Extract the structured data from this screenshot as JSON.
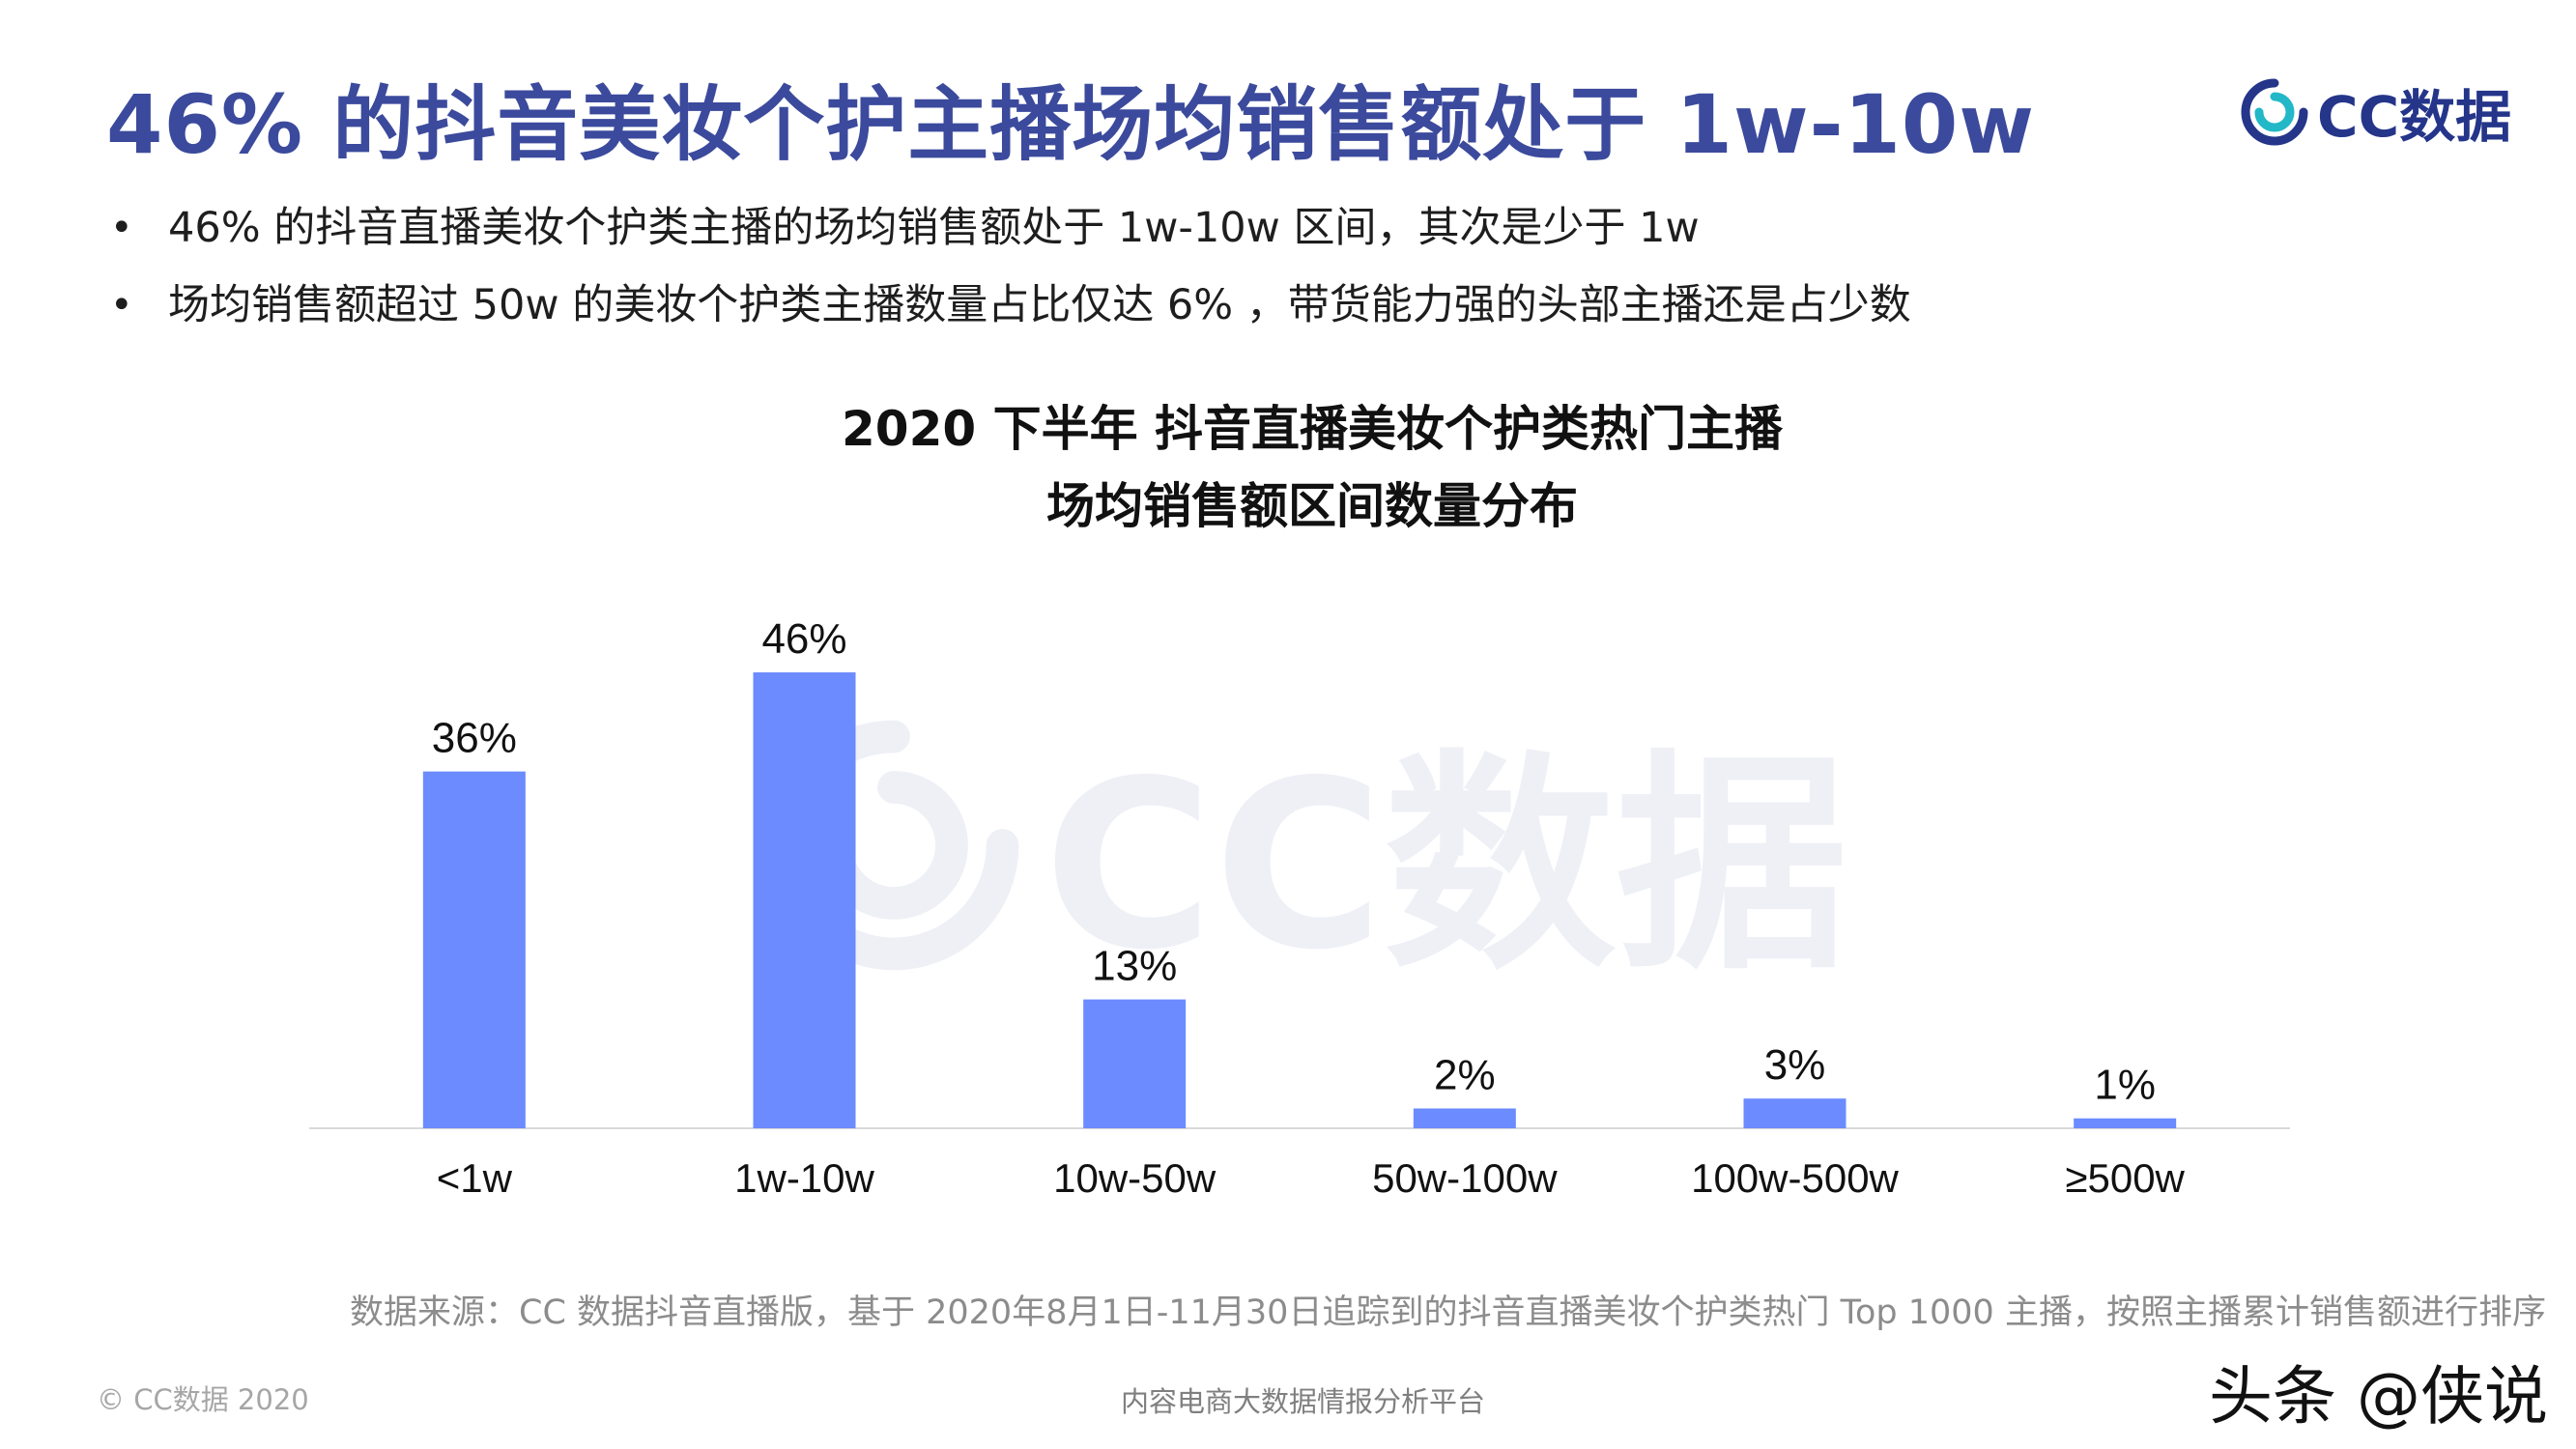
{
  "header": {
    "title": "46% 的抖音美妆个护主播场均销售额处于 1w-10w",
    "logo_text": "CC数据"
  },
  "bullets": [
    "46% 的抖音直播美妆个护类主播的场均销售额处于 1w-10w 区间，其次是少于 1w",
    "场均销售额超过 50w 的美妆个护类主播数量占比仅达 6% ，带货能力强的头部主播还是占少数"
  ],
  "watermark_text": "CC数据",
  "chart_data": {
    "type": "bar",
    "title_lines": [
      "2020 下半年 抖音直播美妆个护类热门主播",
      "场均销售额区间数量分布"
    ],
    "categories": [
      "<1w",
      "1w-10w",
      "10w-50w",
      "50w-100w",
      "100w-500w",
      "≥500w"
    ],
    "values": [
      36,
      46,
      13,
      2,
      3,
      1
    ],
    "value_labels": [
      "36%",
      "46%",
      "13%",
      "2%",
      "3%",
      "1%"
    ],
    "unit": "%",
    "ylim": [
      0,
      50
    ],
    "grid": false,
    "bar_color": "#6b8bff"
  },
  "footer": {
    "source": "数据来源：CC 数据抖音直播版，基于 2020年8月1日-11月30日追踪到的抖音直播美妆个护类热门 Top 1000 主播，按照主播累计销售额进行排序",
    "copyright": "© CC数据 2020",
    "platform": "内容电商大数据情报分析平台",
    "overlay_watermark": "头条 @侠说"
  },
  "colors": {
    "title": "#3b4a9c",
    "logo": "#24358a",
    "logo_accent": "#22b8c8"
  },
  "icons": {
    "logo": "cc-logo-icon",
    "watermark": "cc-logo-icon"
  }
}
